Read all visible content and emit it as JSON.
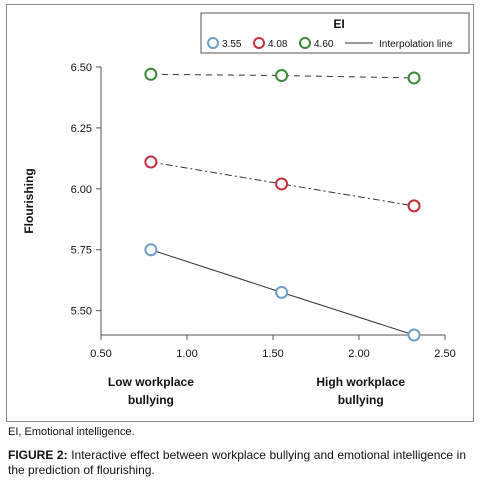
{
  "chart_data": {
    "type": "line",
    "title": "",
    "xlabel": "",
    "ylabel": "Flourishing",
    "xlim": [
      0.5,
      2.5
    ],
    "ylim": [
      5.4,
      6.5
    ],
    "x_ticks": [
      "0.50",
      "1.00",
      "1.50",
      "2.00",
      "2.50"
    ],
    "y_ticks": [
      "5.50",
      "5.75",
      "6.00",
      "6.25",
      "6.50"
    ],
    "x_ticks_values": [
      0.5,
      1.0,
      1.5,
      2.0,
      2.5
    ],
    "y_ticks_values": [
      5.5,
      5.75,
      6.0,
      6.25,
      6.5
    ],
    "category_labels": [
      {
        "text": "Low workplace bullying",
        "x": 0.79
      },
      {
        "text": "High workplace bullying",
        "x": 2.01
      }
    ],
    "legend": {
      "title": "EI",
      "placement": "top-right",
      "interpolation_label": "Interpolation line"
    },
    "series": [
      {
        "name": "3.55",
        "color": "#6f9fc9",
        "dash": "solid",
        "x": [
          0.79,
          1.55,
          2.32
        ],
        "y": [
          5.75,
          5.575,
          5.4
        ]
      },
      {
        "name": "4.08",
        "color": "#c4303c",
        "dash": "dashdot",
        "x": [
          0.79,
          1.55,
          2.32
        ],
        "y": [
          6.11,
          6.02,
          5.93
        ]
      },
      {
        "name": "4.60",
        "color": "#3a8a3a",
        "dash": "dashed",
        "x": [
          0.79,
          1.55,
          2.32
        ],
        "y": [
          6.47,
          6.465,
          6.455
        ]
      }
    ],
    "grid": false
  },
  "notes": {
    "abbreviation": "EI, Emotional intelligence.",
    "caption_label": "FIGURE 2:",
    "caption_text": " Interactive effect between workplace bullying and emotional intelligence in the prediction of flourishing."
  }
}
